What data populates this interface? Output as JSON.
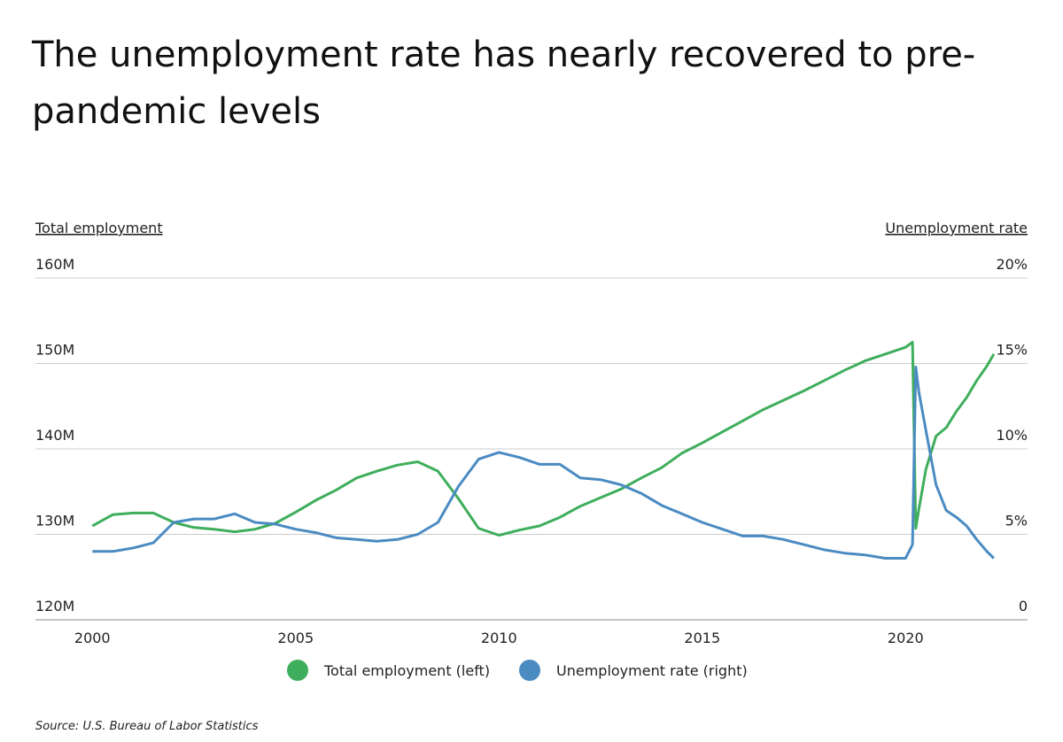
{
  "chart_data": {
    "type": "line",
    "title": "The unemployment rate has nearly recovered to pre-pandemic levels",
    "y_label": "Total employment",
    "y2_label": "Unemployment rate",
    "source": "Source:  U.S. Bureau of Labor Statistics",
    "x": [
      2000.0,
      2000.5,
      2001.0,
      2001.5,
      2002.0,
      2002.5,
      2003.0,
      2003.5,
      2004.0,
      2004.5,
      2005.0,
      2005.5,
      2006.0,
      2006.5,
      2007.0,
      2007.5,
      2008.0,
      2008.5,
      2009.0,
      2009.5,
      2010.0,
      2010.5,
      2011.0,
      2011.5,
      2012.0,
      2012.5,
      2013.0,
      2013.5,
      2014.0,
      2014.5,
      2015.0,
      2015.5,
      2016.0,
      2016.5,
      2017.0,
      2017.5,
      2018.0,
      2018.5,
      2019.0,
      2019.5,
      2020.0,
      2020.17,
      2020.25,
      2020.33,
      2020.5,
      2020.75,
      2021.0,
      2021.25,
      2021.5,
      2021.75,
      2022.0,
      2022.17
    ],
    "xlim": [
      1998.6,
      2023.0
    ],
    "xticks": [
      2000,
      2005,
      2010,
      2015,
      2020
    ],
    "ylim": [
      120,
      160
    ],
    "yticks": [
      {
        "value": 120,
        "label": "120M"
      },
      {
        "value": 130,
        "label": "130M"
      },
      {
        "value": 140,
        "label": "140M"
      },
      {
        "value": 150,
        "label": "150M"
      },
      {
        "value": 160,
        "label": "160M"
      }
    ],
    "y2lim": [
      0,
      20
    ],
    "y2ticks": [
      0,
      {
        "value": 5,
        "label": "5%"
      },
      {
        "value": 10,
        "label": "10%"
      },
      {
        "value": 15,
        "label": "15%"
      },
      {
        "value": 20,
        "label": "20%"
      }
    ],
    "grid": true,
    "series": [
      {
        "name": "Total employment (left)",
        "color": "#3fae5c",
        "values": [
          131.0,
          132.3,
          132.5,
          132.5,
          131.4,
          130.8,
          130.6,
          130.3,
          130.6,
          131.3,
          132.6,
          134.0,
          135.2,
          136.6,
          137.4,
          138.1,
          138.5,
          137.4,
          134.2,
          130.7,
          129.9,
          130.5,
          131.0,
          132.0,
          133.3,
          134.3,
          135.3,
          136.6,
          137.8,
          139.5,
          140.7,
          142.0,
          143.3,
          144.6,
          145.7,
          146.8,
          148.0,
          149.2,
          150.3,
          151.1,
          151.9,
          152.5,
          130.7,
          133.0,
          137.6,
          141.5,
          142.5,
          144.4,
          146.0,
          148.0,
          149.7,
          151.1
        ]
      },
      {
        "name": "Unemployment rate (right)",
        "color": "#4a8bc2",
        "axis": "y2",
        "values": [
          4.0,
          4.0,
          4.2,
          4.5,
          5.7,
          5.9,
          5.9,
          6.2,
          5.7,
          5.6,
          5.3,
          5.1,
          4.8,
          4.7,
          4.6,
          4.7,
          5.0,
          5.7,
          7.8,
          9.4,
          9.8,
          9.5,
          9.1,
          9.1,
          8.3,
          8.2,
          7.9,
          7.4,
          6.7,
          6.2,
          5.7,
          5.3,
          4.9,
          4.9,
          4.7,
          4.4,
          4.1,
          3.9,
          3.8,
          3.6,
          3.6,
          4.4,
          14.8,
          13.3,
          11.1,
          7.9,
          6.4,
          6.0,
          5.5,
          4.7,
          4.0,
          3.6
        ]
      }
    ]
  }
}
